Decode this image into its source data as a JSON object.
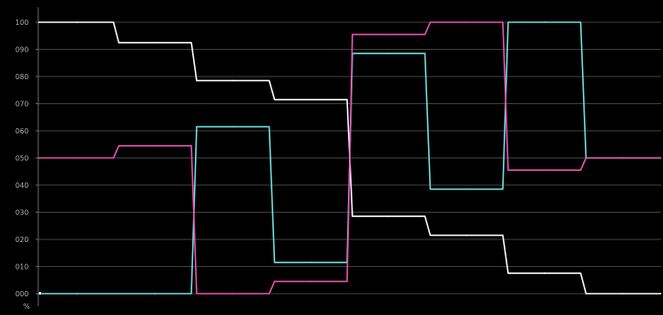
{
  "chart_data": {
    "type": "line",
    "title": "",
    "xlabel": "",
    "ylabel": "%",
    "ylim": [
      0,
      100
    ],
    "grid": true,
    "legend": "none",
    "y_ticks": [
      "000",
      "010",
      "020",
      "030",
      "040",
      "050",
      "060",
      "070",
      "080",
      "090",
      "100"
    ],
    "x": [
      1,
      2,
      3,
      4,
      5,
      6,
      7,
      8
    ],
    "series": [
      {
        "color": "#ffffff",
        "values": [
          100,
          92.5,
          78.5,
          71.5,
          28.5,
          21.5,
          7.5,
          0
        ]
      },
      {
        "color": "#6fe3e6",
        "values": [
          0,
          0,
          61.5,
          11.5,
          88.5,
          38.5,
          100,
          50
        ]
      },
      {
        "color": "#ef52b4",
        "values": [
          50,
          54.5,
          0,
          4.5,
          95.5,
          100,
          45.5,
          50
        ]
      }
    ],
    "baseline_value": 0
  }
}
